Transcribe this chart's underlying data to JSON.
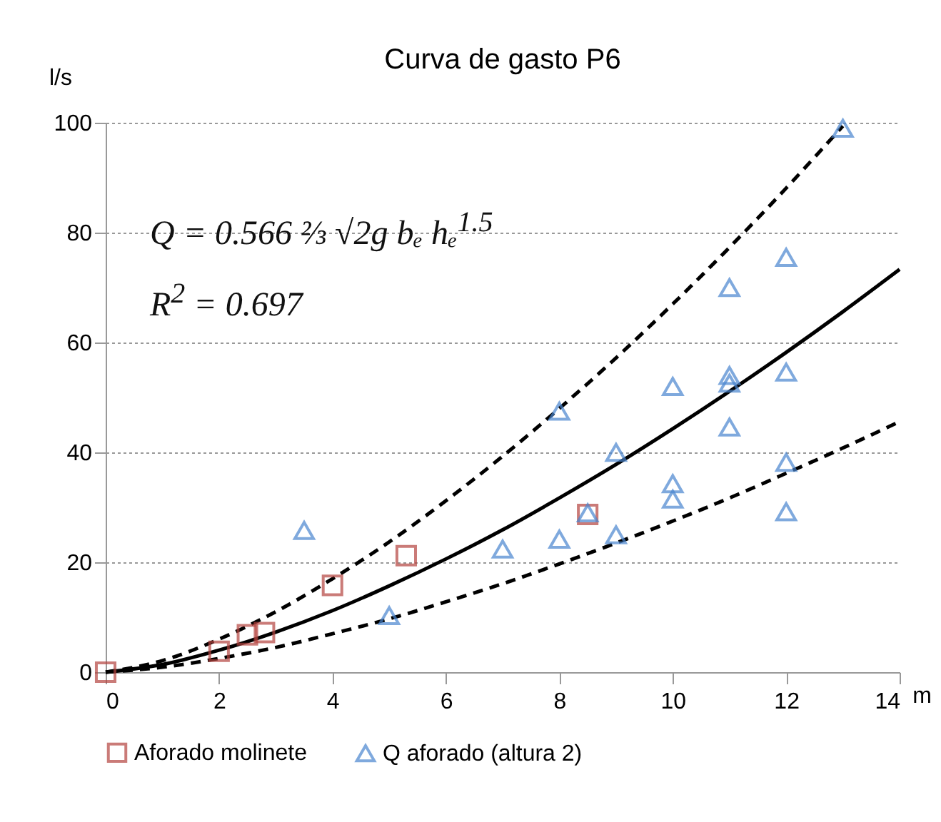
{
  "chart_data": {
    "type": "scatter",
    "title": "Curva de gasto P6",
    "xlabel": "m",
    "ylabel": "l/s",
    "xlim": [
      0,
      14
    ],
    "xticks": [
      0,
      2,
      4,
      6,
      8,
      10,
      12,
      14
    ],
    "ylim": [
      0,
      100
    ],
    "yticks": [
      0,
      20,
      40,
      60,
      80,
      100
    ],
    "grid": "y",
    "legend": "bottom",
    "annotations": [
      "Q = 0.566 ⅔ √2g bₑ hₑ$^{1.5}$",
      "R$^{2}$ = 0.697"
    ],
    "series": [
      {
        "name": "Aforado molinete",
        "marker": "square",
        "color": "#b5443f",
        "x": [
          0,
          2,
          2.5,
          2.8,
          4,
          5.3,
          8.5
        ],
        "values": [
          0,
          3.8,
          6.8,
          7.2,
          15.8,
          21.2,
          28.7
        ]
      },
      {
        "name": "Q aforado (altura 2)",
        "marker": "triangle",
        "color": "#4a86d0",
        "x": [
          3.5,
          5,
          7,
          8,
          8,
          8.5,
          9,
          9,
          10,
          10,
          10,
          11,
          11,
          11,
          11,
          12,
          12,
          12,
          12,
          13
        ],
        "values": [
          25.8,
          10.3,
          22.4,
          24.2,
          47.5,
          29,
          25,
          40,
          31.5,
          34.3,
          52,
          44.6,
          52.6,
          54,
          70,
          29.2,
          38.2,
          54.6,
          75.5,
          99
        ]
      },
      {
        "type": "line",
        "line_style": "solid",
        "color": "#000000",
        "x": [
          0,
          1,
          2,
          3,
          4,
          5,
          6,
          7,
          8,
          9,
          10,
          11,
          12,
          13,
          14
        ],
        "values": [
          0,
          1.4,
          4.0,
          7.3,
          11.2,
          15.7,
          20.6,
          25.9,
          31.7,
          37.8,
          44.3,
          51.1,
          58.2,
          65.6,
          73.3
        ]
      },
      {
        "type": "line",
        "line_style": "dashed",
        "color": "#000000",
        "x": [
          0,
          1,
          2,
          3,
          4,
          5,
          6,
          7,
          8,
          9,
          10,
          11,
          12,
          13
        ],
        "values": [
          0,
          2.1,
          6.0,
          11.0,
          17.0,
          23.7,
          31.2,
          39.3,
          48.0,
          57.2,
          67.0,
          77.3,
          88.1,
          99.4
        ]
      },
      {
        "type": "line",
        "line_style": "dashed",
        "color": "#000000",
        "x": [
          0,
          1,
          2,
          3,
          4,
          5,
          6,
          7,
          8,
          9,
          10,
          11,
          12,
          13,
          14
        ],
        "values": [
          0,
          0.9,
          2.5,
          4.5,
          7.0,
          9.7,
          12.8,
          16.1,
          19.7,
          23.5,
          27.5,
          31.7,
          36.2,
          40.8,
          45.6
        ]
      }
    ]
  }
}
